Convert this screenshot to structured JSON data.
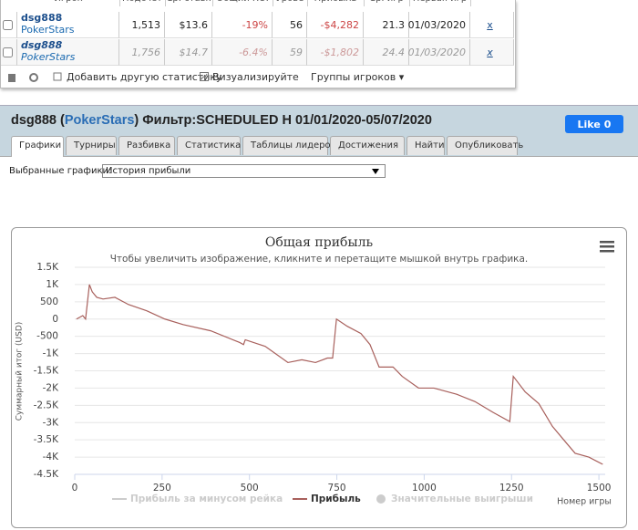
{
  "stats_table": {
    "headers": [
      "Игрок",
      "Подсчет",
      "Ср. ставк",
      "Общий ROI",
      "Урове",
      "Прибыль",
      "Ср. игр",
      "Первая игр"
    ],
    "rows": [
      {
        "player": "dsg888",
        "site": "PokerStars",
        "cells": [
          "1,513",
          "$13.6",
          "-19%",
          "56",
          "-$4,282",
          "21.3",
          "01/03/2020"
        ],
        "remove": "x"
      },
      {
        "player": "dsg888",
        "site": "PokerStars",
        "cells": [
          "1,756",
          "$14.7",
          "-6.4%",
          "59",
          "-$1,802",
          "24.4",
          "01/03/2020"
        ],
        "remove": "x"
      }
    ],
    "toolbar": [
      "Добавить другую статистику",
      "Визуализируйте",
      "Группы игроков ▾"
    ]
  },
  "panel": {
    "title_parts": [
      "dsg888 (",
      "PokerStars",
      ") Фильтр:SCHEDULED H 01/01/2020-05/07/2020"
    ],
    "like_label": "Like",
    "like_count": "0",
    "tabs": [
      "Графики",
      "Турниры",
      "Разбивка",
      "Статистика",
      "Таблицы лидеров",
      "Достижения",
      "Найти",
      "Опубликовать"
    ],
    "selector_label": "Выбранные графики:",
    "selector_value": "История прибыли"
  },
  "chart_data": {
    "type": "line",
    "title": "Общая прибыль",
    "subtitle": "Чтобы увеличить изображение, кликните и перетащите мышкой внутрь графика.",
    "y_label": "Суммарный итог (USD)",
    "x_label": "Номер игры",
    "x": [
      5,
      23,
      31,
      42,
      50,
      63,
      81,
      115,
      154,
      206,
      258,
      310,
      389,
      472,
      483,
      488,
      545,
      610,
      650,
      689,
      723,
      738,
      749,
      780,
      819,
      845,
      871,
      911,
      937,
      984,
      1028,
      1093,
      1145,
      1198,
      1245,
      1255,
      1289,
      1328,
      1367,
      1406,
      1432,
      1471,
      1511
    ],
    "series": [
      {
        "name": "Прибыль",
        "color": "#a8605c",
        "values": [
          0,
          100,
          0,
          1000,
          790,
          630,
          580,
          630,
          420,
          240,
          0,
          -160,
          -340,
          -680,
          -740,
          -600,
          -790,
          -1260,
          -1180,
          -1260,
          -1130,
          -1130,
          0,
          -210,
          -420,
          -740,
          -1390,
          -1390,
          -1660,
          -2000,
          -2000,
          -2180,
          -2390,
          -2710,
          -2970,
          -1660,
          -2110,
          -2450,
          -3110,
          -3580,
          -3890,
          -4000,
          -4210
        ]
      }
    ],
    "inactive_legend": [
      "Прибыль за минусом рейка",
      "Значительные выигрыши"
    ],
    "xlim": [
      0,
      1518
    ],
    "xticks": [
      0,
      250,
      500,
      750,
      1000,
      1250,
      1500
    ],
    "ylim": [
      -4500,
      1500
    ],
    "yticks": [
      {
        "value": 1500,
        "label": "1.5K"
      },
      {
        "value": 1000,
        "label": "1K"
      },
      500,
      0,
      -500,
      {
        "value": -1000,
        "label": "-1K"
      },
      {
        "value": -1500,
        "label": "-1.5K"
      },
      {
        "value": -2000,
        "label": "-2K"
      },
      {
        "value": -2500,
        "label": "-2.5K"
      },
      {
        "value": -3000,
        "label": "-3K"
      },
      {
        "value": -3500,
        "label": "-3.5K"
      },
      {
        "value": -4000,
        "label": "-4K"
      },
      {
        "value": -4500,
        "label": "-4.5K"
      }
    ],
    "grid": true
  }
}
